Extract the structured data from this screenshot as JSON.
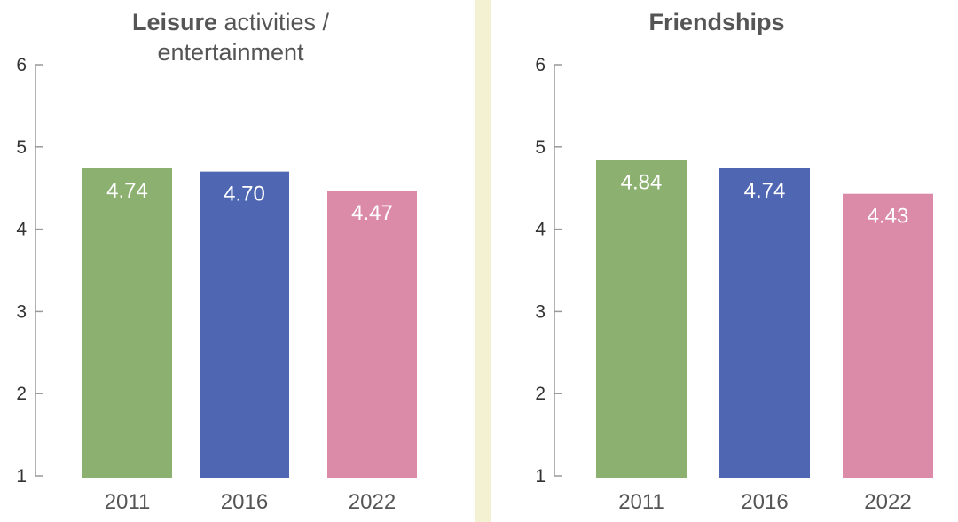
{
  "colors": {
    "2011": "#8bb070",
    "2016": "#4f67b2",
    "2022": "#db8ba8",
    "axis": "#999999",
    "divider": "#f4f1d3"
  },
  "chart_data": [
    {
      "type": "bar",
      "title_bold": "Leisure",
      "title_rest": " activities / entertainment",
      "categories": [
        "2011",
        "2016",
        "2022"
      ],
      "values": [
        4.74,
        4.7,
        4.47
      ],
      "value_labels": [
        "4.74",
        "4.70",
        "4.47"
      ],
      "yticks": [
        "1",
        "2",
        "3",
        "4",
        "5",
        "6"
      ],
      "ylim": [
        1,
        6
      ],
      "grid": false
    },
    {
      "type": "bar",
      "title_bold": "Friendships",
      "title_rest": "",
      "categories": [
        "2011",
        "2016",
        "2022"
      ],
      "values": [
        4.84,
        4.74,
        4.43
      ],
      "value_labels": [
        "4.84",
        "4.74",
        "4.43"
      ],
      "yticks": [
        "1",
        "2",
        "3",
        "4",
        "5",
        "6"
      ],
      "ylim": [
        1,
        6
      ],
      "grid": false
    }
  ]
}
